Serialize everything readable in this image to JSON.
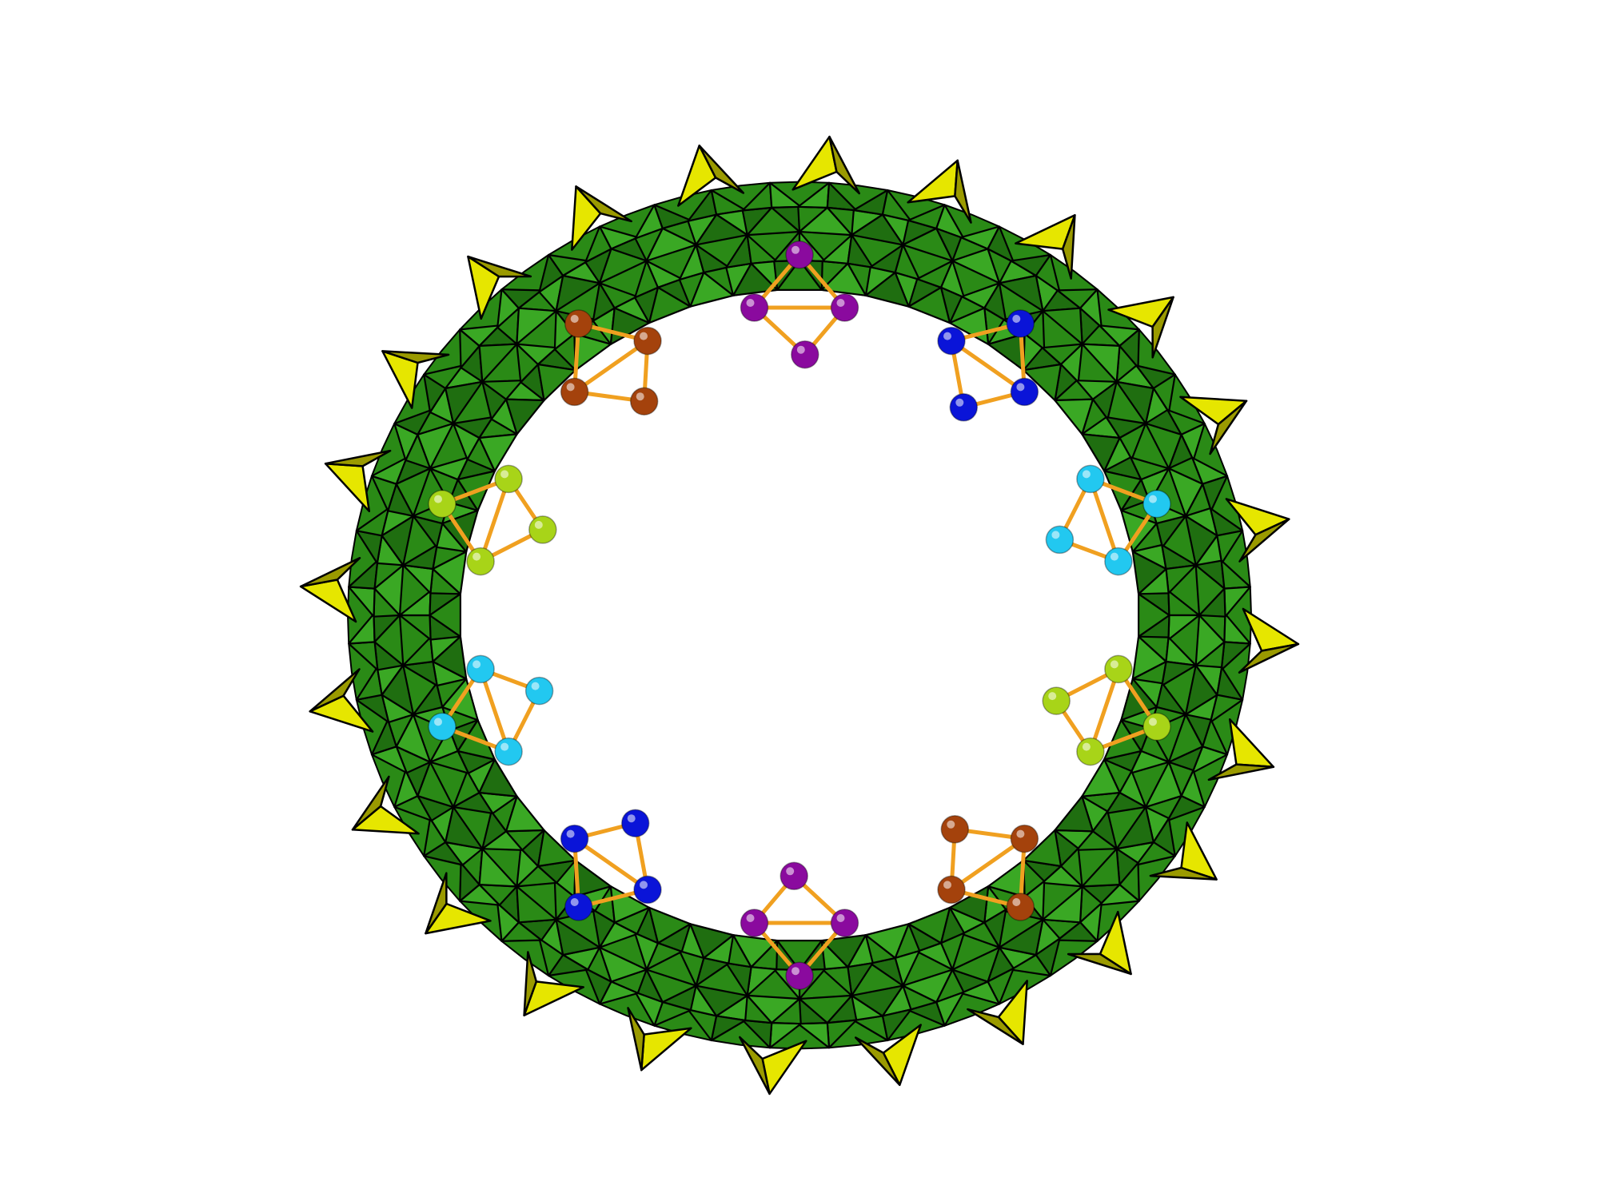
{
  "figure": {
    "description_free": true,
    "background": "#ffffff",
    "colors": {
      "octahedron_dark": "#1f6e10",
      "octahedron_mid": "#2a8a16",
      "octahedron_light": "#3aa824",
      "octahedron_edge": "#000000",
      "tetrahedron": "#e6e600",
      "tetrahedron_dark": "#9a9a00",
      "bond": "#f0a020",
      "atom_purple": "#8a0a9e",
      "atom_brown": "#a4420c",
      "atom_blue": "#0a14d8",
      "atom_cyan": "#22c8f0",
      "atom_lime": "#a8d418"
    },
    "ring": {
      "octahedra_count": 48,
      "tetrahedra_count": 24
    },
    "inner_clusters": [
      {
        "color_key": "atom_purple",
        "atoms": 4
      },
      {
        "color_key": "atom_brown",
        "atoms": 4
      },
      {
        "color_key": "atom_blue",
        "atoms": 4
      },
      {
        "color_key": "atom_cyan",
        "atoms": 4
      },
      {
        "color_key": "atom_lime",
        "atoms": 4
      }
    ]
  }
}
